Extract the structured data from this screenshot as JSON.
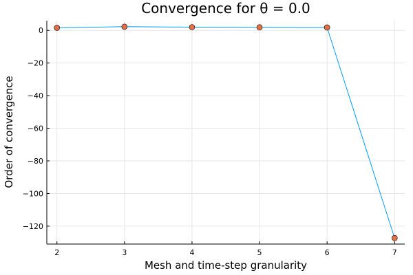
{
  "chart_data": {
    "type": "line",
    "title": "Convergence for θ = 0.0",
    "xlabel": "Mesh and time-step granularity",
    "ylabel": "Order of convergence",
    "x": [
      2,
      3,
      4,
      5,
      6,
      7
    ],
    "series": [
      {
        "values": [
          1.6,
          2.3,
          2.0,
          1.9,
          1.8,
          -127.3
        ]
      }
    ],
    "xlim": [
      1.85,
      7.15
    ],
    "ylim": [
      -131,
      6
    ],
    "xticks": [
      2,
      3,
      4,
      5,
      6,
      7
    ],
    "yticks": [
      0,
      -20,
      -40,
      -60,
      -80,
      -100,
      -120
    ],
    "grid": true,
    "legend": "none",
    "line_color": "#009af9",
    "marker_color": "#e26f46",
    "marker_edge_color": "#000000"
  }
}
